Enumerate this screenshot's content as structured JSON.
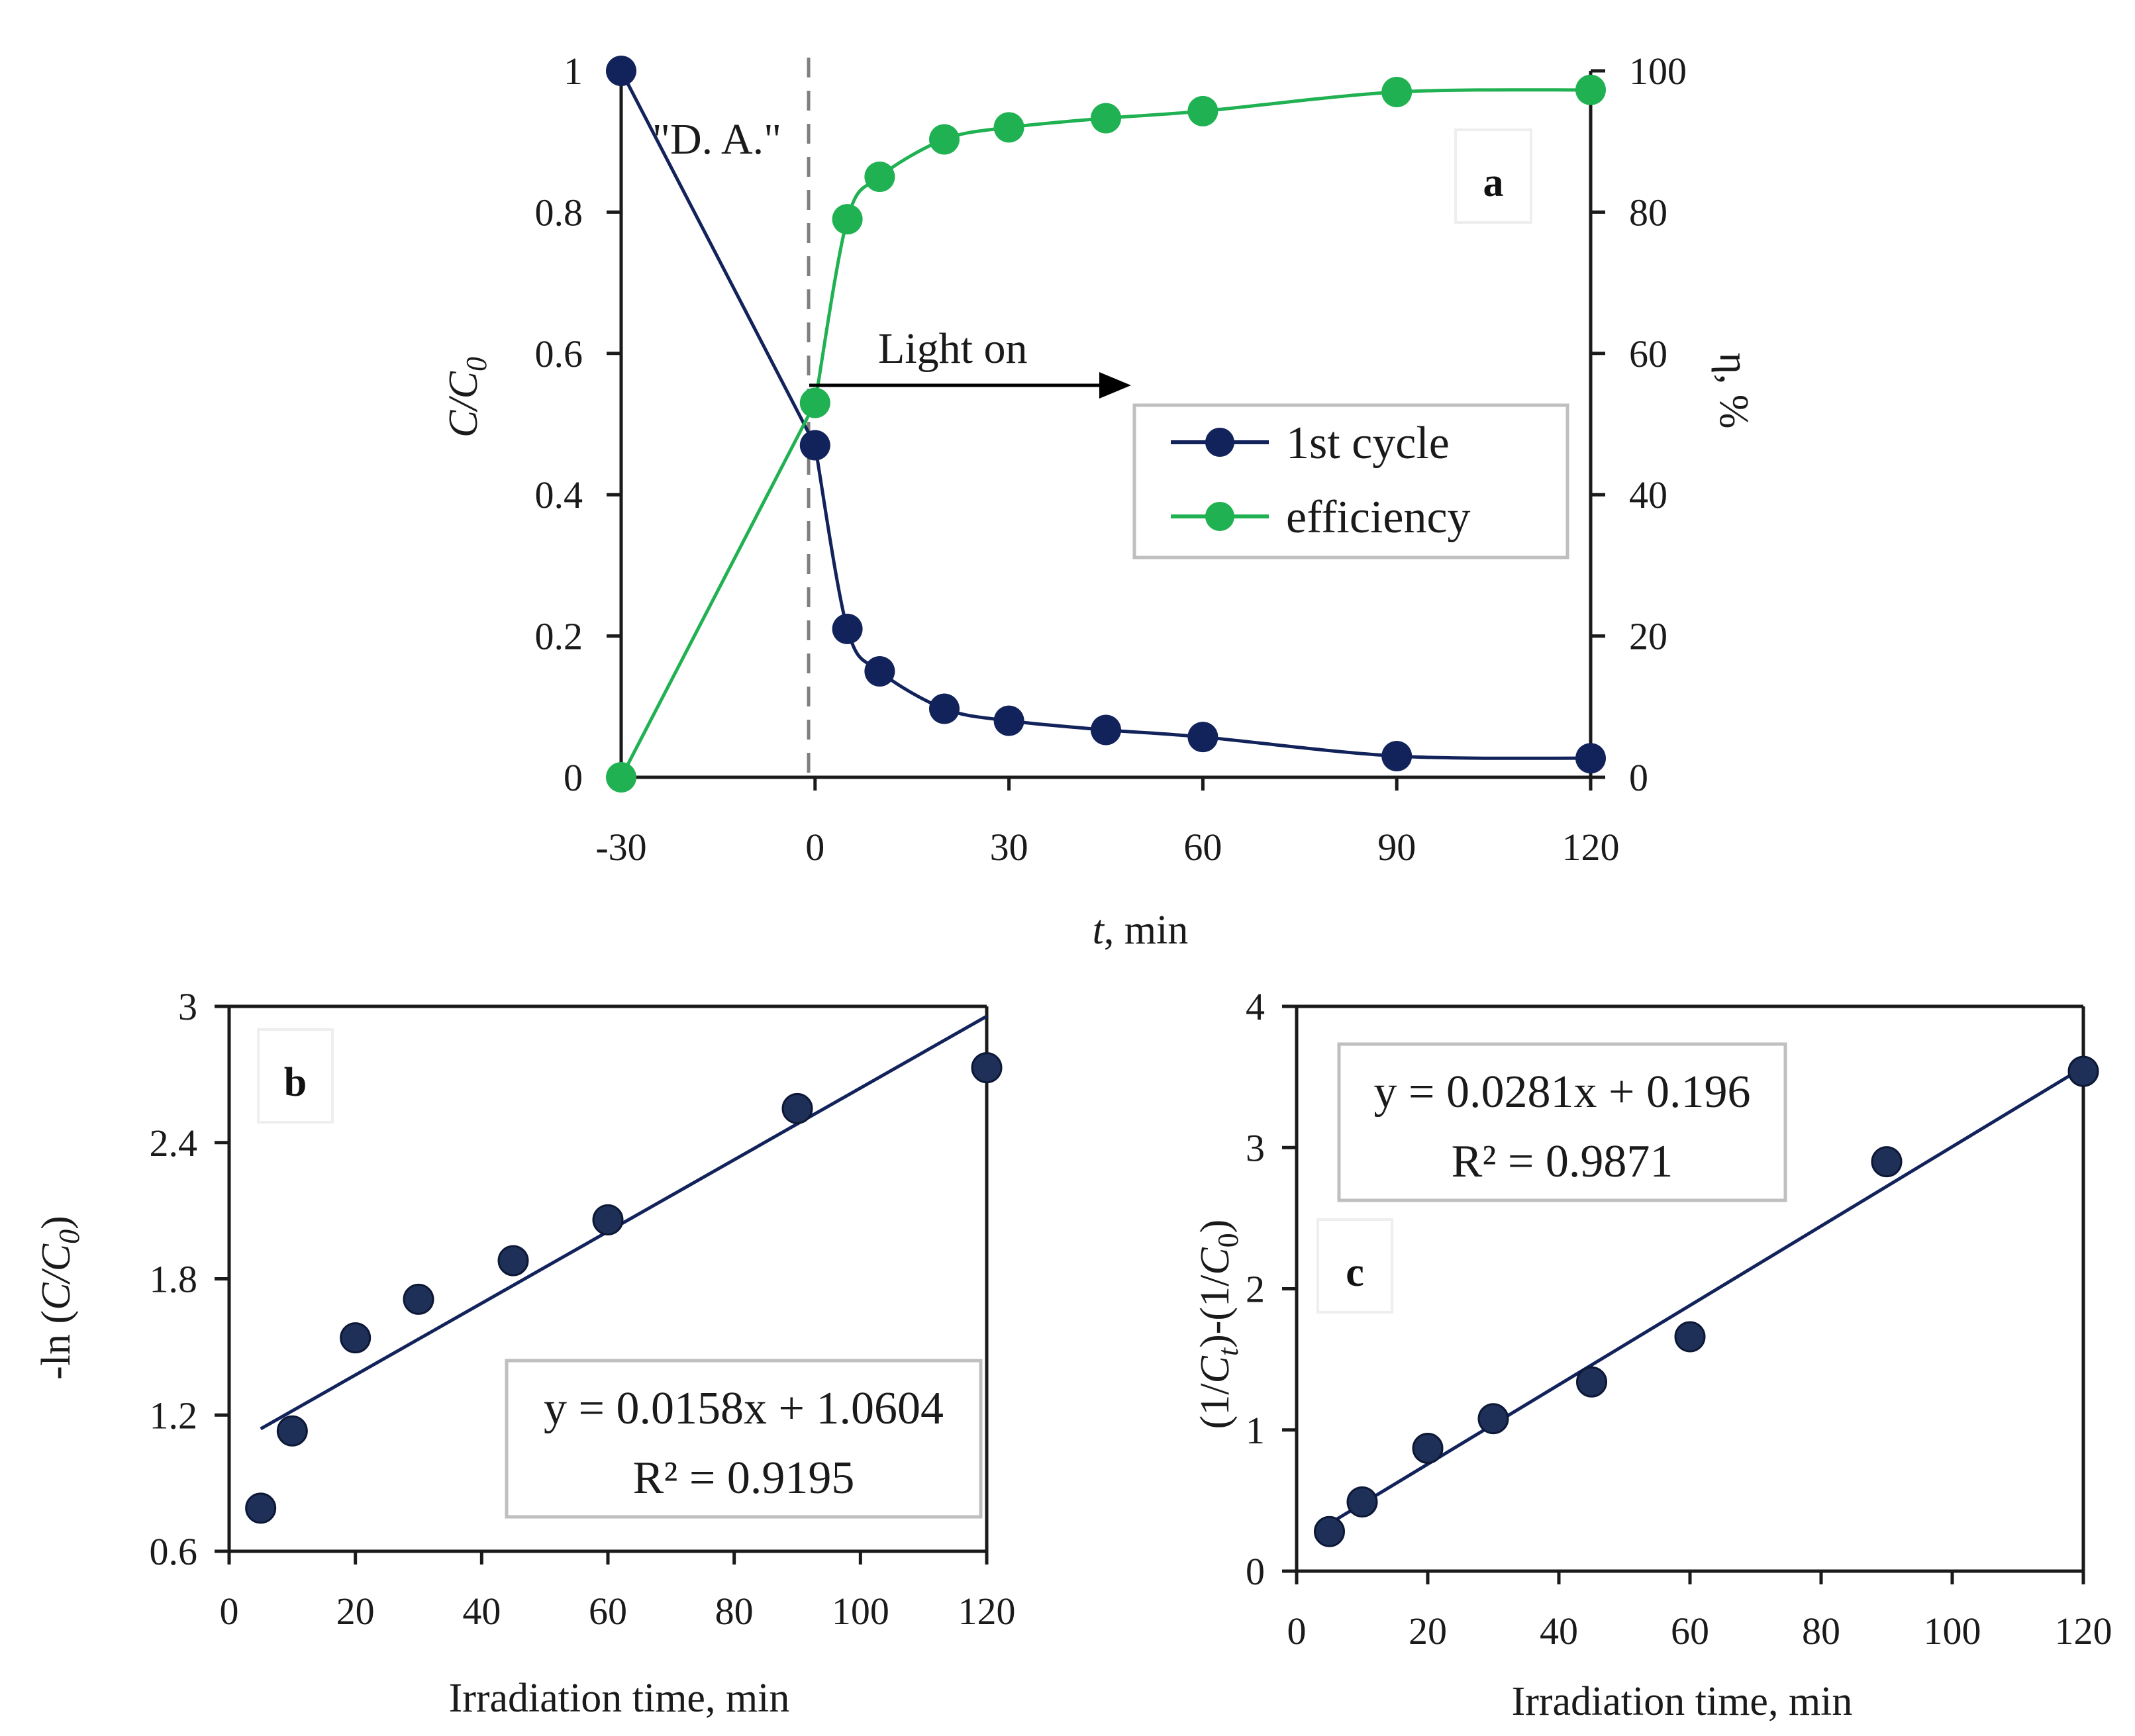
{
  "colors": {
    "navy": "#12225a",
    "green": "#1fb152",
    "dash": "#7f7f7f",
    "box": "#bfbfbf",
    "axis": "#1a1a1a"
  },
  "chart_data": [
    {
      "type": "line",
      "panel": "a",
      "xlabel_italic": "t",
      "xlabel_rest": ", min",
      "ylabel_left_main": "C/C",
      "ylabel_left_sub": "0",
      "ylabel_right": "η, %",
      "xlim": [
        -30,
        120
      ],
      "xticks": [
        -30,
        0,
        30,
        60,
        90,
        120
      ],
      "xtick_labels": [
        "-30",
        "0",
        "30",
        "60",
        "90",
        "120"
      ],
      "ylim_left": [
        0,
        1
      ],
      "yticks_left": [
        0,
        0.2,
        0.4,
        0.6,
        0.8,
        1
      ],
      "ytick_labels_left": [
        "0",
        "0.2",
        "0.4",
        "0.6",
        "0.8",
        "1"
      ],
      "ylim_right": [
        0,
        100
      ],
      "yticks_right": [
        0,
        20,
        40,
        60,
        80,
        100
      ],
      "ytick_labels_right": [
        "0",
        "20",
        "40",
        "60",
        "80",
        "100"
      ],
      "series": [
        {
          "name": "1st cycle",
          "axis": "left",
          "color": "#12225a",
          "x": [
            -30,
            0,
            5,
            10,
            20,
            30,
            45,
            60,
            90,
            120
          ],
          "values": [
            1.0,
            0.47,
            0.21,
            0.15,
            0.097,
            0.08,
            0.067,
            0.057,
            0.03,
            0.027
          ]
        },
        {
          "name": "efficiency",
          "axis": "right",
          "color": "#1fb152",
          "x": [
            -30,
            0,
            5,
            10,
            20,
            30,
            45,
            60,
            90,
            120
          ],
          "values": [
            0,
            53,
            79,
            85,
            90.3,
            92,
            93.3,
            94.3,
            97,
            97.3
          ]
        }
      ],
      "legend": [
        "1st cycle",
        "efficiency"
      ],
      "legend_position": "center-right",
      "annotations": {
        "dark_adsorption": "\"D. A.\"",
        "light_on": "Light on"
      }
    },
    {
      "type": "scatter",
      "panel": "b",
      "xlabel": "Irradiation time, min",
      "ylabel_pre": "-ln (",
      "ylabel_main": "C/C",
      "ylabel_sub": "0",
      "ylabel_post": ")",
      "xlim": [
        0,
        120
      ],
      "xticks": [
        0,
        20,
        40,
        60,
        80,
        100,
        120
      ],
      "xtick_labels": [
        "0",
        "20",
        "40",
        "60",
        "80",
        "100",
        "120"
      ],
      "ylim": [
        0.6,
        3.0
      ],
      "yticks": [
        0.6,
        1.2,
        1.8,
        2.4,
        3.0
      ],
      "ytick_labels": [
        "0.6",
        "1.2",
        "1.8",
        "2.4",
        "3"
      ],
      "x": [
        5,
        10,
        20,
        30,
        45,
        60,
        90,
        120
      ],
      "y": [
        0.79,
        1.13,
        1.54,
        1.71,
        1.88,
        2.06,
        2.55,
        2.73
      ],
      "fit": {
        "slope": 0.0158,
        "intercept": 1.0604,
        "x_range": [
          5,
          120
        ]
      },
      "equation": "y = 0.0158x + 1.0604",
      "r2": "R² = 0.9195"
    },
    {
      "type": "scatter",
      "panel": "c",
      "xlabel": "Irradiation time, min",
      "ylabel_a": "(1/",
      "ylabel_b": "C",
      "ylabel_b_sub": "t",
      "ylabel_c": ")-(1/",
      "ylabel_d": "C",
      "ylabel_d_sub": "0",
      "ylabel_e": ")",
      "xlim": [
        0,
        120
      ],
      "xticks": [
        0,
        20,
        40,
        60,
        80,
        100,
        120
      ],
      "xtick_labels": [
        "0",
        "20",
        "40",
        "60",
        "80",
        "100",
        "120"
      ],
      "ylim": [
        0,
        4
      ],
      "yticks": [
        0,
        1,
        2,
        3,
        4
      ],
      "ytick_labels": [
        "0",
        "1",
        "2",
        "3",
        "4"
      ],
      "x": [
        5,
        10,
        20,
        30,
        45,
        60,
        90,
        120
      ],
      "y": [
        0.28,
        0.49,
        0.87,
        1.08,
        1.34,
        1.66,
        2.9,
        3.54
      ],
      "fit": {
        "slope": 0.0281,
        "intercept": 0.196,
        "x_range": [
          5,
          120
        ]
      },
      "equation": "y = 0.0281x + 0.196",
      "r2": "R² = 0.9871"
    }
  ]
}
